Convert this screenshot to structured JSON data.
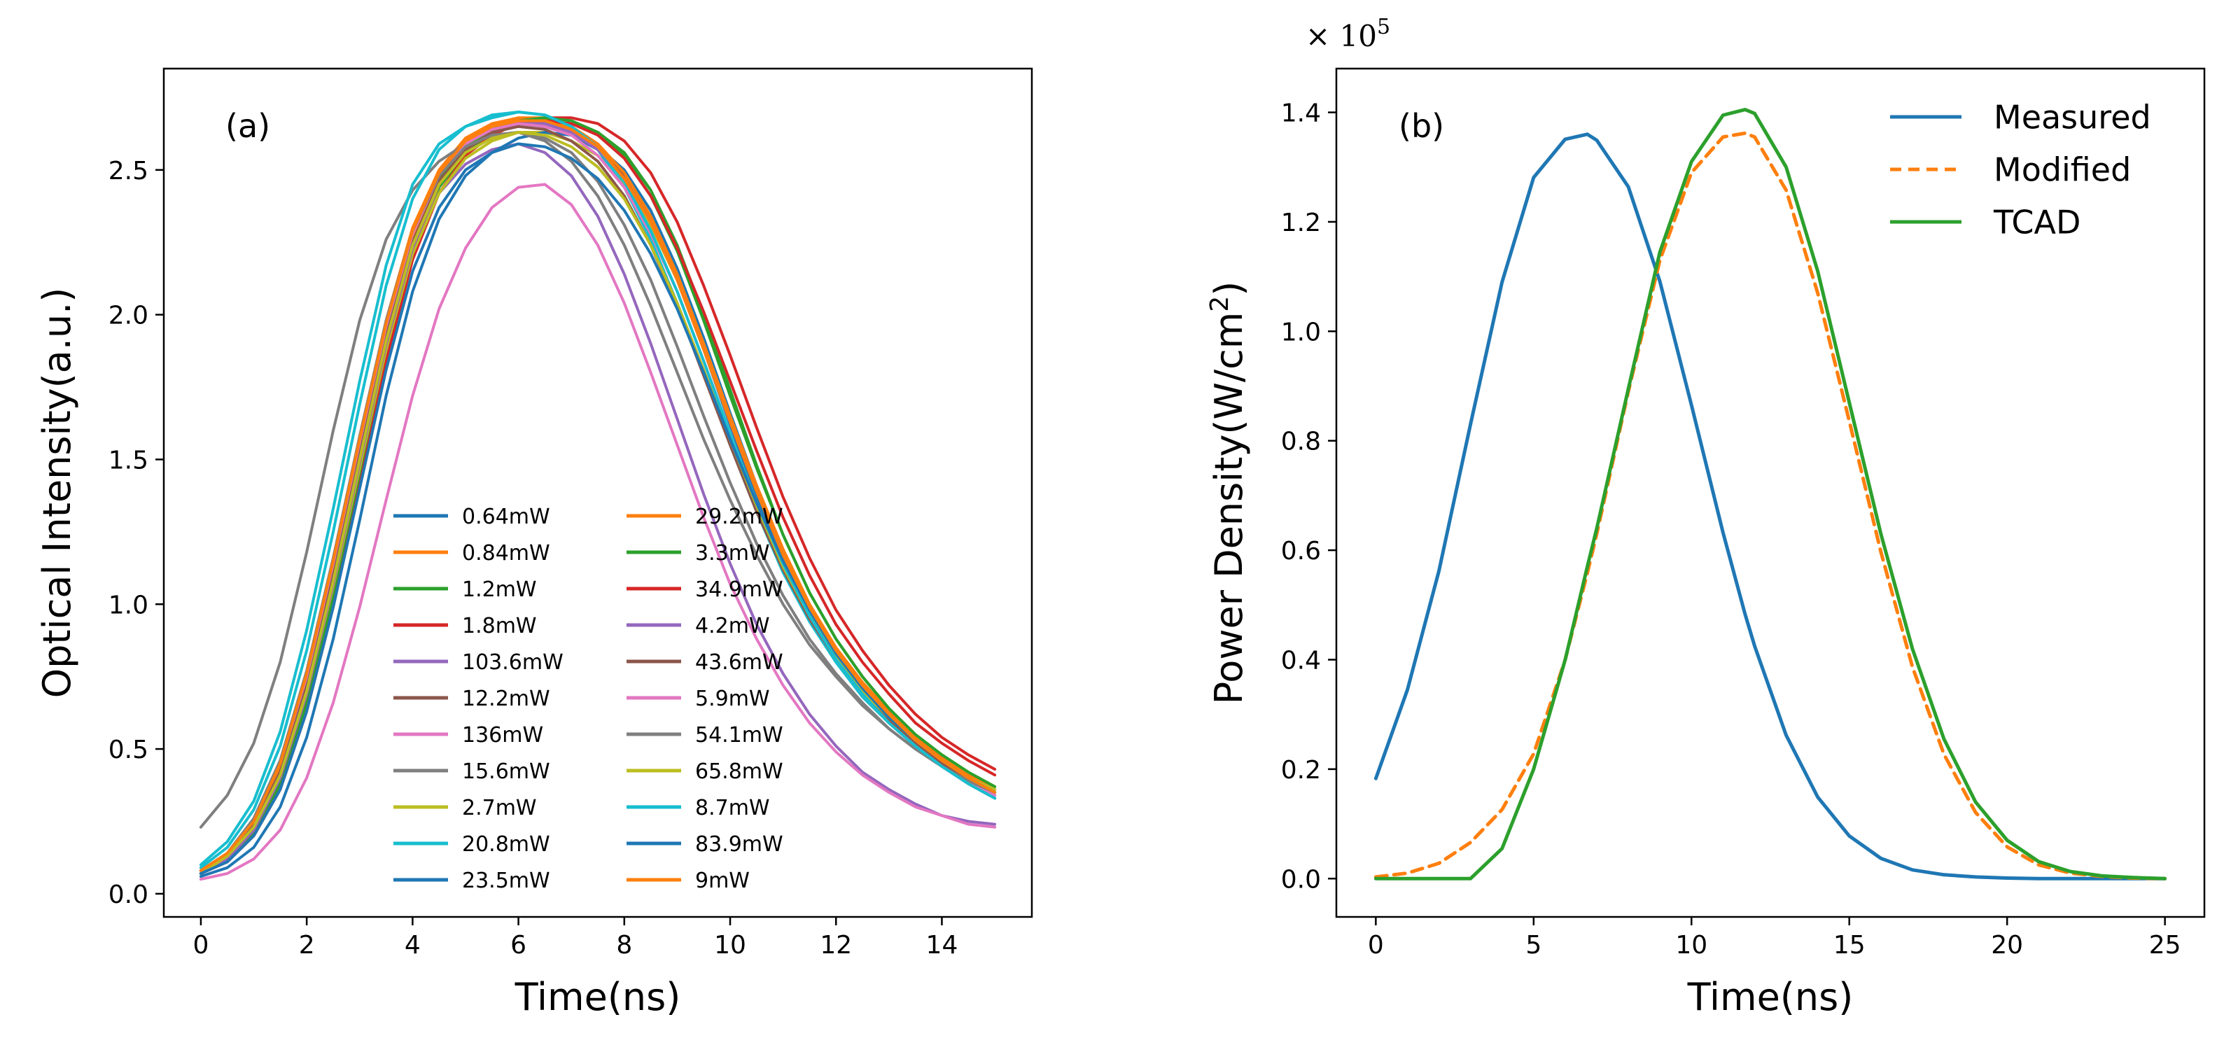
{
  "chart_data": [
    {
      "type": "line",
      "panel_label": "(a)",
      "xlabel": "Time(ns)",
      "ylabel": "Optical Intensity(a.u.)",
      "xlim": [
        -0.7,
        15.7
      ],
      "ylim": [
        -0.08,
        2.85
      ],
      "xticks": [
        0,
        2,
        4,
        6,
        8,
        10,
        12,
        14
      ],
      "yticks": [
        0.0,
        0.5,
        1.0,
        1.5,
        2.0,
        2.5
      ],
      "ytick_labels": [
        "0.0",
        "0.5",
        "1.0",
        "1.5",
        "2.0",
        "2.5"
      ],
      "grid": false,
      "legend": {
        "placement": "lower-center",
        "columns": 2
      },
      "x": [
        0,
        0.5,
        1,
        1.5,
        2,
        2.5,
        3,
        3.5,
        4,
        4.5,
        5,
        5.5,
        6,
        6.5,
        7,
        7.5,
        8,
        8.5,
        9,
        9.5,
        10,
        10.5,
        11,
        11.5,
        12,
        12.5,
        13,
        13.5,
        14,
        14.5,
        15
      ],
      "series": [
        {
          "name": "0.64mW",
          "color": "#1f77b4",
          "values": [
            0.07,
            0.12,
            0.22,
            0.4,
            0.7,
            1.08,
            1.5,
            1.92,
            2.25,
            2.46,
            2.58,
            2.64,
            2.66,
            2.65,
            2.62,
            2.57,
            2.47,
            2.32,
            2.12,
            1.88,
            1.62,
            1.37,
            1.15,
            0.97,
            0.82,
            0.7,
            0.6,
            0.51,
            0.44,
            0.38,
            0.33
          ]
        },
        {
          "name": "0.84mW",
          "color": "#ff7f0e",
          "values": [
            0.08,
            0.14,
            0.25,
            0.45,
            0.76,
            1.15,
            1.58,
            1.98,
            2.3,
            2.5,
            2.61,
            2.66,
            2.68,
            2.67,
            2.64,
            2.58,
            2.48,
            2.32,
            2.12,
            1.88,
            1.63,
            1.39,
            1.17,
            0.99,
            0.84,
            0.72,
            0.62,
            0.53,
            0.46,
            0.4,
            0.35
          ]
        },
        {
          "name": "1.2mW",
          "color": "#2ca02c",
          "values": [
            0.07,
            0.12,
            0.21,
            0.38,
            0.66,
            1.03,
            1.45,
            1.88,
            2.22,
            2.44,
            2.56,
            2.63,
            2.66,
            2.67,
            2.66,
            2.63,
            2.56,
            2.43,
            2.24,
            2.0,
            1.74,
            1.48,
            1.24,
            1.04,
            0.88,
            0.75,
            0.64,
            0.55,
            0.48,
            0.42,
            0.37
          ]
        },
        {
          "name": "1.8mW",
          "color": "#d62728",
          "values": [
            0.07,
            0.11,
            0.2,
            0.36,
            0.63,
            0.99,
            1.41,
            1.84,
            2.19,
            2.42,
            2.55,
            2.62,
            2.66,
            2.68,
            2.68,
            2.66,
            2.6,
            2.49,
            2.32,
            2.1,
            1.86,
            1.61,
            1.37,
            1.16,
            0.98,
            0.84,
            0.72,
            0.62,
            0.54,
            0.48,
            0.43
          ]
        },
        {
          "name": "103.6mW",
          "color": "#9467bd",
          "values": [
            0.08,
            0.14,
            0.26,
            0.46,
            0.76,
            1.14,
            1.55,
            1.94,
            2.24,
            2.42,
            2.52,
            2.57,
            2.59,
            2.56,
            2.48,
            2.34,
            2.14,
            1.9,
            1.64,
            1.38,
            1.14,
            0.93,
            0.76,
            0.62,
            0.51,
            0.42,
            0.36,
            0.31,
            0.27,
            0.25,
            0.24
          ]
        },
        {
          "name": "12.2mW",
          "color": "#8c564b",
          "values": [
            0.08,
            0.13,
            0.24,
            0.43,
            0.73,
            1.11,
            1.53,
            1.94,
            2.26,
            2.47,
            2.58,
            2.64,
            2.66,
            2.66,
            2.63,
            2.58,
            2.48,
            2.33,
            2.13,
            1.89,
            1.64,
            1.4,
            1.18,
            0.99,
            0.84,
            0.72,
            0.62,
            0.53,
            0.46,
            0.4,
            0.35
          ]
        },
        {
          "name": "136mW",
          "color": "#e377c2",
          "values": [
            0.05,
            0.07,
            0.12,
            0.22,
            0.4,
            0.66,
            0.99,
            1.36,
            1.72,
            2.02,
            2.23,
            2.37,
            2.44,
            2.45,
            2.38,
            2.24,
            2.04,
            1.8,
            1.55,
            1.3,
            1.07,
            0.88,
            0.72,
            0.59,
            0.49,
            0.41,
            0.35,
            0.3,
            0.27,
            0.24,
            0.23
          ]
        },
        {
          "name": "15.6mW",
          "color": "#7f7f7f",
          "values": [
            0.23,
            0.34,
            0.52,
            0.8,
            1.18,
            1.6,
            1.98,
            2.26,
            2.43,
            2.53,
            2.59,
            2.62,
            2.63,
            2.61,
            2.56,
            2.46,
            2.31,
            2.12,
            1.89,
            1.65,
            1.42,
            1.21,
            1.03,
            0.88,
            0.76,
            0.66,
            0.57,
            0.5,
            0.44,
            0.39,
            0.35
          ]
        },
        {
          "name": "2.7mW",
          "color": "#bcbd22",
          "values": [
            0.07,
            0.12,
            0.22,
            0.4,
            0.69,
            1.06,
            1.47,
            1.88,
            2.21,
            2.42,
            2.54,
            2.6,
            2.63,
            2.63,
            2.6,
            2.55,
            2.45,
            2.31,
            2.12,
            1.89,
            1.65,
            1.41,
            1.19,
            1.0,
            0.85,
            0.73,
            0.63,
            0.54,
            0.47,
            0.41,
            0.36
          ]
        },
        {
          "name": "20.8mW",
          "color": "#17becf",
          "values": [
            0.1,
            0.18,
            0.32,
            0.56,
            0.91,
            1.33,
            1.77,
            2.17,
            2.45,
            2.59,
            2.65,
            2.68,
            2.7,
            2.69,
            2.65,
            2.57,
            2.44,
            2.26,
            2.04,
            1.8,
            1.55,
            1.32,
            1.11,
            0.94,
            0.8,
            0.68,
            0.59,
            0.51,
            0.44,
            0.39,
            0.34
          ]
        },
        {
          "name": "23.5mW",
          "color": "#1f77b4",
          "values": [
            0.06,
            0.09,
            0.16,
            0.3,
            0.54,
            0.88,
            1.29,
            1.72,
            2.08,
            2.33,
            2.48,
            2.56,
            2.61,
            2.63,
            2.62,
            2.58,
            2.5,
            2.36,
            2.16,
            1.92,
            1.66,
            1.41,
            1.18,
            0.99,
            0.83,
            0.7,
            0.6,
            0.51,
            0.44,
            0.38,
            0.33
          ]
        },
        {
          "name": "29.2mW",
          "color": "#ff7f0e",
          "values": [
            0.08,
            0.14,
            0.25,
            0.44,
            0.74,
            1.12,
            1.54,
            1.95,
            2.27,
            2.48,
            2.59,
            2.65,
            2.68,
            2.68,
            2.65,
            2.59,
            2.49,
            2.34,
            2.14,
            1.9,
            1.65,
            1.41,
            1.19,
            1.0,
            0.85,
            0.73,
            0.63,
            0.54,
            0.47,
            0.41,
            0.36
          ]
        },
        {
          "name": "3.3mW",
          "color": "#2ca02c",
          "values": [
            0.08,
            0.13,
            0.23,
            0.41,
            0.7,
            1.08,
            1.5,
            1.91,
            2.24,
            2.46,
            2.58,
            2.64,
            2.67,
            2.68,
            2.67,
            2.63,
            2.55,
            2.41,
            2.22,
            1.98,
            1.72,
            1.47,
            1.24,
            1.04,
            0.88,
            0.75,
            0.64,
            0.55,
            0.48,
            0.42,
            0.37
          ]
        },
        {
          "name": "34.9mW",
          "color": "#d62728",
          "values": [
            0.07,
            0.12,
            0.22,
            0.4,
            0.69,
            1.07,
            1.49,
            1.9,
            2.23,
            2.45,
            2.57,
            2.63,
            2.66,
            2.67,
            2.66,
            2.62,
            2.54,
            2.41,
            2.23,
            2.01,
            1.77,
            1.53,
            1.3,
            1.1,
            0.93,
            0.8,
            0.69,
            0.59,
            0.52,
            0.46,
            0.41
          ]
        },
        {
          "name": "4.2mW",
          "color": "#9467bd",
          "values": [
            0.07,
            0.12,
            0.22,
            0.4,
            0.69,
            1.07,
            1.49,
            1.9,
            2.23,
            2.45,
            2.57,
            2.63,
            2.66,
            2.66,
            2.63,
            2.57,
            2.47,
            2.32,
            2.12,
            1.88,
            1.63,
            1.39,
            1.17,
            0.98,
            0.83,
            0.71,
            0.61,
            0.52,
            0.45,
            0.39,
            0.34
          ]
        },
        {
          "name": "43.6mW",
          "color": "#8c564b",
          "values": [
            0.08,
            0.13,
            0.24,
            0.42,
            0.72,
            1.1,
            1.52,
            1.93,
            2.25,
            2.46,
            2.57,
            2.63,
            2.65,
            2.64,
            2.6,
            2.53,
            2.41,
            2.24,
            2.03,
            1.79,
            1.55,
            1.32,
            1.12,
            0.95,
            0.81,
            0.7,
            0.6,
            0.52,
            0.45,
            0.4,
            0.35
          ]
        },
        {
          "name": "5.9mW",
          "color": "#e377c2",
          "values": [
            0.08,
            0.14,
            0.25,
            0.45,
            0.75,
            1.14,
            1.56,
            1.96,
            2.28,
            2.48,
            2.59,
            2.64,
            2.66,
            2.65,
            2.62,
            2.55,
            2.44,
            2.28,
            2.08,
            1.84,
            1.59,
            1.35,
            1.14,
            0.96,
            0.81,
            0.69,
            0.59,
            0.51,
            0.44,
            0.38,
            0.34
          ]
        },
        {
          "name": "54.1mW",
          "color": "#7f7f7f",
          "values": [
            0.08,
            0.14,
            0.26,
            0.46,
            0.77,
            1.16,
            1.58,
            1.98,
            2.29,
            2.48,
            2.58,
            2.62,
            2.63,
            2.6,
            2.53,
            2.41,
            2.24,
            2.03,
            1.8,
            1.57,
            1.36,
            1.17,
            1.0,
            0.86,
            0.75,
            0.65,
            0.57,
            0.5,
            0.44,
            0.39,
            0.35
          ]
        },
        {
          "name": "65.8mW",
          "color": "#bcbd22",
          "values": [
            0.07,
            0.13,
            0.23,
            0.41,
            0.7,
            1.08,
            1.5,
            1.91,
            2.24,
            2.45,
            2.56,
            2.61,
            2.63,
            2.62,
            2.58,
            2.51,
            2.4,
            2.24,
            2.04,
            1.81,
            1.57,
            1.34,
            1.13,
            0.96,
            0.82,
            0.7,
            0.61,
            0.53,
            0.46,
            0.4,
            0.36
          ]
        },
        {
          "name": "8.7mW",
          "color": "#17becf",
          "values": [
            0.09,
            0.16,
            0.29,
            0.51,
            0.84,
            1.25,
            1.69,
            2.1,
            2.4,
            2.57,
            2.65,
            2.69,
            2.7,
            2.69,
            2.65,
            2.58,
            2.46,
            2.29,
            2.08,
            1.84,
            1.59,
            1.35,
            1.14,
            0.96,
            0.81,
            0.69,
            0.59,
            0.51,
            0.44,
            0.38,
            0.33
          ]
        },
        {
          "name": "83.9mW",
          "color": "#1f77b4",
          "values": [
            0.07,
            0.11,
            0.2,
            0.36,
            0.63,
            0.99,
            1.4,
            1.81,
            2.15,
            2.37,
            2.5,
            2.56,
            2.59,
            2.58,
            2.54,
            2.47,
            2.36,
            2.21,
            2.02,
            1.8,
            1.57,
            1.35,
            1.15,
            0.98,
            0.83,
            0.71,
            0.61,
            0.53,
            0.46,
            0.4,
            0.35
          ]
        },
        {
          "name": "9mW",
          "color": "#ff7f0e",
          "values": [
            0.08,
            0.14,
            0.25,
            0.45,
            0.76,
            1.15,
            1.57,
            1.97,
            2.29,
            2.49,
            2.6,
            2.65,
            2.67,
            2.67,
            2.64,
            2.58,
            2.47,
            2.32,
            2.12,
            1.88,
            1.63,
            1.39,
            1.17,
            0.99,
            0.84,
            0.72,
            0.62,
            0.53,
            0.46,
            0.4,
            0.35
          ]
        }
      ]
    },
    {
      "type": "line",
      "panel_label": "(b)",
      "xlabel": "Time(ns)",
      "ylabel_main": "Power Density(W/cm",
      "ylabel_sup": "2",
      "ylabel_close": ")",
      "offset_base": "× 10",
      "offset_exp": "5",
      "xlim": [
        -1.25,
        26.25
      ],
      "ylim": [
        -0.07,
        1.48
      ],
      "xticks": [
        0,
        5,
        10,
        15,
        20,
        25
      ],
      "yticks": [
        0.0,
        0.2,
        0.4,
        0.6,
        0.8,
        1.0,
        1.2,
        1.4
      ],
      "ytick_labels": [
        "0.0",
        "0.2",
        "0.4",
        "0.6",
        "0.8",
        "1.0",
        "1.2",
        "1.4"
      ],
      "grid": false,
      "legend": {
        "placement": "top-right",
        "columns": 1
      },
      "x": [
        0,
        1,
        2,
        3,
        4,
        5,
        6,
        6.7,
        7,
        8,
        9,
        10,
        11,
        11.7,
        12,
        13,
        14,
        15,
        16,
        17,
        18,
        19,
        20,
        21,
        22,
        23,
        24,
        25
      ],
      "series": [
        {
          "name": "Measured",
          "color": "#1f77b4",
          "dash": "solid",
          "values": [
            0.183,
            0.345,
            0.562,
            0.83,
            1.09,
            1.281,
            1.351,
            1.36,
            1.349,
            1.264,
            1.091,
            0.865,
            0.632,
            0.483,
            0.425,
            0.262,
            0.149,
            0.078,
            0.037,
            0.016,
            0.007,
            0.003,
            0.001,
            0.0,
            0.0,
            0.0,
            0.0,
            0.0
          ]
        },
        {
          "name": "Modified",
          "color": "#ff7f0e",
          "dash": "dashed",
          "values": [
            0.003,
            0.01,
            0.028,
            0.066,
            0.126,
            0.228,
            0.4,
            0.558,
            0.63,
            0.89,
            1.13,
            1.29,
            1.355,
            1.362,
            1.355,
            1.258,
            1.07,
            0.836,
            0.597,
            0.387,
            0.227,
            0.121,
            0.058,
            0.025,
            0.01,
            0.004,
            0.001,
            0.0
          ]
        },
        {
          "name": "TCAD",
          "color": "#2ca02c",
          "dash": "solid",
          "values": [
            0.0,
            0.0,
            0.0,
            0.0,
            0.055,
            0.2,
            0.4,
            0.57,
            0.64,
            0.895,
            1.145,
            1.31,
            1.395,
            1.405,
            1.398,
            1.3,
            1.11,
            0.87,
            0.63,
            0.42,
            0.255,
            0.14,
            0.07,
            0.031,
            0.013,
            0.005,
            0.002,
            0.0
          ]
        }
      ]
    }
  ]
}
